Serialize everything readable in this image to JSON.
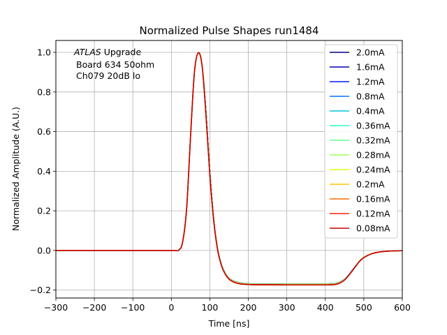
{
  "chart_data": {
    "type": "line",
    "title": "Normalized Pulse Shapes run1484",
    "xlabel": "Time [ns]",
    "ylabel": "Normalized Amplitude (A.U.)",
    "xlim": [
      -300,
      600
    ],
    "ylim": [
      -0.24,
      1.06
    ],
    "xticks": [
      -300,
      -200,
      -100,
      0,
      100,
      200,
      300,
      400,
      500,
      600
    ],
    "xtick_labels": [
      "−300",
      "−200",
      "−100",
      "0",
      "100",
      "200",
      "300",
      "400",
      "500",
      "600"
    ],
    "yticks": [
      -0.2,
      0.0,
      0.2,
      0.4,
      0.6,
      0.8,
      1.0
    ],
    "ytick_labels": [
      "−0.2",
      "0.0",
      "0.2",
      "0.4",
      "0.6",
      "0.8",
      "1.0"
    ],
    "grid": true,
    "legend_position": "upper-right",
    "annotation": {
      "atlas": "ATLAS",
      "line1_rest": " Upgrade",
      "line2": "Board 634 50ohm",
      "line3": "Ch079 20dB lo"
    },
    "x": [
      -300,
      -200,
      -100,
      0,
      20,
      30,
      40,
      50,
      60,
      70,
      80,
      90,
      100,
      110,
      120,
      130,
      140,
      150,
      160,
      170,
      180,
      190,
      200,
      220,
      250,
      300,
      350,
      400,
      420,
      430,
      440,
      450,
      460,
      470,
      480,
      490,
      500,
      520,
      540,
      560,
      580,
      600
    ],
    "series": [
      {
        "name": "2.0mA",
        "color": "#00007f",
        "values": [
          0,
          0,
          0,
          0,
          0.003,
          0.05,
          0.22,
          0.58,
          0.9,
          0.998,
          0.93,
          0.7,
          0.4,
          0.16,
          0.01,
          -0.07,
          -0.115,
          -0.14,
          -0.153,
          -0.16,
          -0.164,
          -0.167,
          -0.168,
          -0.169,
          -0.169,
          -0.169,
          -0.169,
          -0.169,
          -0.168,
          -0.165,
          -0.158,
          -0.145,
          -0.125,
          -0.1,
          -0.075,
          -0.052,
          -0.035,
          -0.017,
          -0.008,
          -0.004,
          -0.002,
          -0.001
        ]
      },
      {
        "name": "1.6mA",
        "color": "#0000b2",
        "values": [
          0,
          0,
          0,
          0,
          0.003,
          0.05,
          0.22,
          0.58,
          0.9,
          0.998,
          0.93,
          0.7,
          0.4,
          0.16,
          0.01,
          -0.07,
          -0.115,
          -0.14,
          -0.153,
          -0.16,
          -0.164,
          -0.167,
          -0.168,
          -0.169,
          -0.169,
          -0.169,
          -0.169,
          -0.169,
          -0.168,
          -0.165,
          -0.158,
          -0.145,
          -0.125,
          -0.1,
          -0.075,
          -0.052,
          -0.035,
          -0.017,
          -0.008,
          -0.004,
          -0.002,
          -0.001
        ]
      },
      {
        "name": "1.2mA",
        "color": "#0018ff",
        "values": [
          0,
          0,
          0,
          0,
          0.003,
          0.05,
          0.22,
          0.58,
          0.9,
          0.998,
          0.93,
          0.7,
          0.4,
          0.16,
          0.01,
          -0.07,
          -0.115,
          -0.14,
          -0.153,
          -0.16,
          -0.164,
          -0.167,
          -0.168,
          -0.169,
          -0.169,
          -0.169,
          -0.169,
          -0.169,
          -0.168,
          -0.165,
          -0.158,
          -0.145,
          -0.125,
          -0.1,
          -0.075,
          -0.052,
          -0.035,
          -0.017,
          -0.008,
          -0.004,
          -0.002,
          -0.001
        ]
      },
      {
        "name": "0.8mA",
        "color": "#0070ff",
        "values": [
          0,
          0,
          0,
          0,
          0.003,
          0.05,
          0.22,
          0.58,
          0.9,
          0.998,
          0.93,
          0.7,
          0.4,
          0.16,
          0.01,
          -0.07,
          -0.115,
          -0.14,
          -0.153,
          -0.16,
          -0.164,
          -0.167,
          -0.168,
          -0.169,
          -0.169,
          -0.169,
          -0.169,
          -0.169,
          -0.168,
          -0.165,
          -0.158,
          -0.145,
          -0.125,
          -0.1,
          -0.075,
          -0.052,
          -0.035,
          -0.017,
          -0.008,
          -0.004,
          -0.002,
          -0.001
        ]
      },
      {
        "name": "0.4mA",
        "color": "#00c6d8",
        "values": [
          0,
          0,
          0,
          0,
          0.003,
          0.05,
          0.22,
          0.58,
          0.9,
          0.998,
          0.93,
          0.7,
          0.4,
          0.16,
          0.01,
          -0.07,
          -0.115,
          -0.14,
          -0.153,
          -0.16,
          -0.164,
          -0.167,
          -0.168,
          -0.169,
          -0.169,
          -0.169,
          -0.169,
          -0.169,
          -0.168,
          -0.165,
          -0.158,
          -0.145,
          -0.125,
          -0.1,
          -0.075,
          -0.052,
          -0.035,
          -0.017,
          -0.008,
          -0.004,
          -0.002,
          -0.001
        ]
      },
      {
        "name": "0.36mA",
        "color": "#2cffca",
        "values": [
          0,
          0,
          0,
          0,
          0.003,
          0.05,
          0.22,
          0.58,
          0.9,
          0.998,
          0.93,
          0.69,
          0.39,
          0.155,
          0.008,
          -0.072,
          -0.117,
          -0.142,
          -0.155,
          -0.162,
          -0.166,
          -0.169,
          -0.17,
          -0.171,
          -0.171,
          -0.171,
          -0.171,
          -0.171,
          -0.17,
          -0.167,
          -0.16,
          -0.147,
          -0.127,
          -0.102,
          -0.076,
          -0.053,
          -0.035,
          -0.017,
          -0.008,
          -0.004,
          -0.002,
          -0.001
        ]
      },
      {
        "name": "0.32mA",
        "color": "#66ff90",
        "values": [
          0,
          0,
          0,
          0,
          0.003,
          0.05,
          0.22,
          0.58,
          0.9,
          0.998,
          0.93,
          0.69,
          0.39,
          0.155,
          0.008,
          -0.072,
          -0.117,
          -0.142,
          -0.155,
          -0.162,
          -0.166,
          -0.169,
          -0.17,
          -0.171,
          -0.171,
          -0.171,
          -0.171,
          -0.171,
          -0.17,
          -0.167,
          -0.16,
          -0.147,
          -0.127,
          -0.102,
          -0.076,
          -0.053,
          -0.035,
          -0.017,
          -0.008,
          -0.004,
          -0.002,
          -0.001
        ]
      },
      {
        "name": "0.28mA",
        "color": "#a0ff56",
        "values": [
          0,
          0,
          0,
          0,
          0.003,
          0.05,
          0.22,
          0.58,
          0.9,
          0.998,
          0.93,
          0.69,
          0.39,
          0.155,
          0.008,
          -0.072,
          -0.117,
          -0.142,
          -0.155,
          -0.162,
          -0.166,
          -0.169,
          -0.17,
          -0.171,
          -0.171,
          -0.171,
          -0.171,
          -0.171,
          -0.17,
          -0.167,
          -0.16,
          -0.147,
          -0.127,
          -0.102,
          -0.076,
          -0.053,
          -0.035,
          -0.017,
          -0.008,
          -0.004,
          -0.002,
          -0.001
        ]
      },
      {
        "name": "0.24mA",
        "color": "#d8ff1e",
        "values": [
          0,
          0,
          0,
          0,
          0.003,
          0.05,
          0.22,
          0.58,
          0.9,
          0.998,
          0.93,
          0.69,
          0.39,
          0.155,
          0.008,
          -0.072,
          -0.117,
          -0.142,
          -0.155,
          -0.162,
          -0.166,
          -0.169,
          -0.17,
          -0.171,
          -0.171,
          -0.171,
          -0.171,
          -0.171,
          -0.17,
          -0.167,
          -0.16,
          -0.147,
          -0.127,
          -0.102,
          -0.076,
          -0.053,
          -0.035,
          -0.017,
          -0.008,
          -0.004,
          -0.002,
          -0.001
        ]
      },
      {
        "name": "0.2mA",
        "color": "#ffc400",
        "values": [
          0,
          0,
          0,
          0,
          0.003,
          0.05,
          0.22,
          0.58,
          0.9,
          0.998,
          0.93,
          0.69,
          0.39,
          0.155,
          0.008,
          -0.072,
          -0.117,
          -0.142,
          -0.155,
          -0.162,
          -0.166,
          -0.169,
          -0.17,
          -0.171,
          -0.171,
          -0.171,
          -0.171,
          -0.171,
          -0.17,
          -0.167,
          -0.16,
          -0.147,
          -0.127,
          -0.102,
          -0.076,
          -0.053,
          -0.035,
          -0.017,
          -0.008,
          -0.004,
          -0.002,
          -0.001
        ]
      },
      {
        "name": "0.16mA",
        "color": "#ff6a00",
        "values": [
          0,
          0,
          0,
          0,
          0.003,
          0.05,
          0.22,
          0.58,
          0.9,
          0.998,
          0.93,
          0.68,
          0.38,
          0.15,
          0.005,
          -0.075,
          -0.12,
          -0.145,
          -0.158,
          -0.165,
          -0.169,
          -0.171,
          -0.172,
          -0.173,
          -0.173,
          -0.174,
          -0.174,
          -0.174,
          -0.173,
          -0.17,
          -0.162,
          -0.149,
          -0.128,
          -0.103,
          -0.077,
          -0.053,
          -0.036,
          -0.017,
          -0.008,
          -0.004,
          -0.002,
          -0.001
        ]
      },
      {
        "name": "0.12mA",
        "color": "#ff2200",
        "values": [
          0,
          0,
          0,
          0,
          0.003,
          0.05,
          0.22,
          0.58,
          0.9,
          0.998,
          0.93,
          0.68,
          0.38,
          0.15,
          0.005,
          -0.075,
          -0.12,
          -0.145,
          -0.158,
          -0.165,
          -0.169,
          -0.171,
          -0.172,
          -0.173,
          -0.173,
          -0.174,
          -0.174,
          -0.174,
          -0.173,
          -0.17,
          -0.162,
          -0.149,
          -0.128,
          -0.103,
          -0.077,
          -0.053,
          -0.036,
          -0.017,
          -0.008,
          -0.004,
          -0.002,
          -0.001
        ]
      },
      {
        "name": "0.08mA",
        "color": "#c40000",
        "values": [
          0,
          0,
          0,
          0,
          0.003,
          0.05,
          0.22,
          0.58,
          0.9,
          0.998,
          0.93,
          0.68,
          0.38,
          0.15,
          0.005,
          -0.075,
          -0.12,
          -0.145,
          -0.158,
          -0.165,
          -0.169,
          -0.171,
          -0.172,
          -0.173,
          -0.173,
          -0.174,
          -0.174,
          -0.174,
          -0.173,
          -0.17,
          -0.162,
          -0.149,
          -0.128,
          -0.103,
          -0.077,
          -0.053,
          -0.036,
          -0.017,
          -0.008,
          -0.004,
          -0.002,
          -0.001
        ]
      }
    ]
  }
}
